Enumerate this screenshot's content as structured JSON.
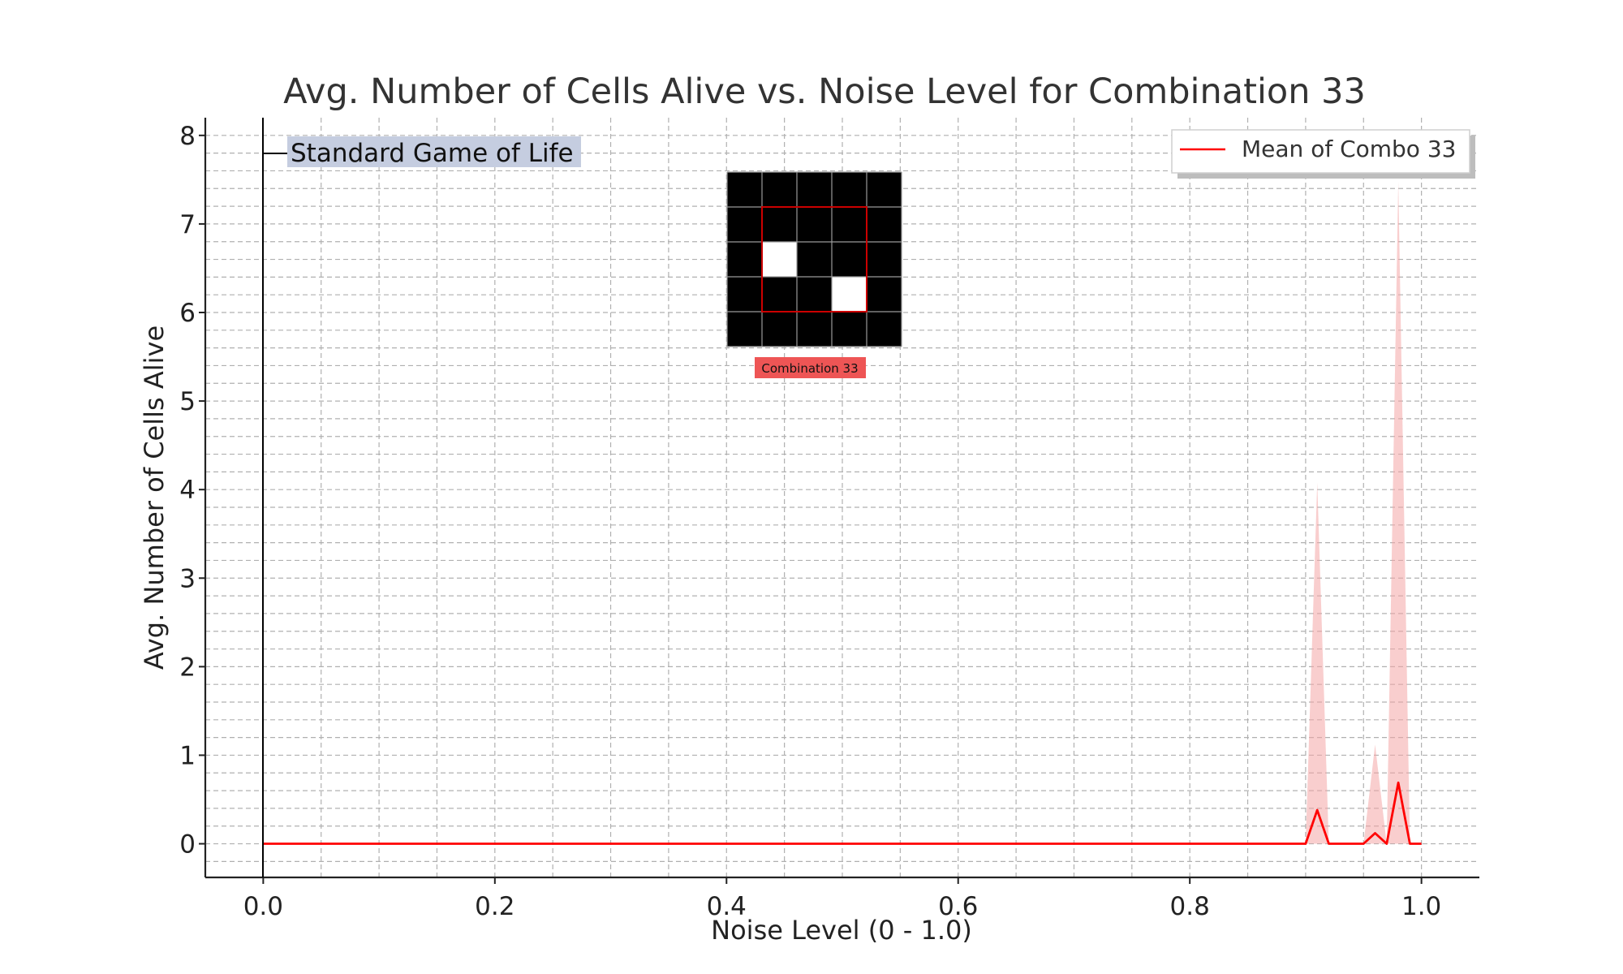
{
  "chart_data": {
    "type": "line",
    "title": "Avg. Number of Cells Alive vs. Noise Level for Combination 33",
    "xlabel": "Noise Level (0 - 1.0)",
    "ylabel": "Avg. Number of Cells Alive",
    "xlim": [
      -0.05,
      1.05
    ],
    "ylim": [
      -0.38,
      8.2
    ],
    "x_ticks": [
      "0.0",
      "0.2",
      "0.4",
      "0.6",
      "0.8",
      "1.0"
    ],
    "x_tick_values": [
      0.0,
      0.2,
      0.4,
      0.6,
      0.8,
      1.0
    ],
    "y_ticks": [
      "0",
      "1",
      "2",
      "3",
      "4",
      "5",
      "6",
      "7",
      "8"
    ],
    "y_tick_values": [
      0,
      1,
      2,
      3,
      4,
      5,
      6,
      7,
      8
    ],
    "grid": true,
    "legend_position": "top-right",
    "series": [
      {
        "name": "Mean of Combo 33",
        "color": "#ff0000",
        "band_color": "#f4a6a6",
        "x": [
          0.0,
          0.9,
          0.91,
          0.92,
          0.95,
          0.96,
          0.97,
          0.98,
          0.99,
          1.0
        ],
        "y": [
          0,
          0,
          0.38,
          0,
          0,
          0.12,
          0,
          0.69,
          0,
          0
        ],
        "upper": [
          0,
          0,
          4.08,
          0,
          0,
          1.12,
          0,
          7.48,
          0,
          0
        ],
        "lower": [
          0,
          0,
          0,
          0,
          0,
          0,
          0,
          0,
          0,
          0
        ]
      }
    ],
    "annotations": [
      {
        "text": "Standard Game of Life",
        "x": 0.0,
        "y": 7.8,
        "background": "#c5cde0"
      }
    ],
    "inset": {
      "label": "Combination 33",
      "label_background": "#ee5555",
      "grid_size": 5,
      "alive_cells": [
        [
          2,
          1
        ],
        [
          3,
          3
        ]
      ],
      "highlight_box": {
        "from_row": 1,
        "from_col": 1,
        "to_row": 3,
        "to_col": 3,
        "color": "#cc0000"
      }
    }
  }
}
